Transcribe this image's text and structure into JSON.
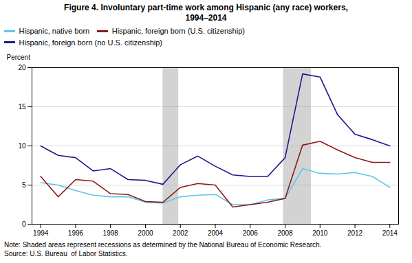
{
  "chart_data": {
    "type": "line",
    "title": "Figure 4. Involuntary part-time work among Hispanic (any race) workers,",
    "subtitle": "1994–2014",
    "y_label": "Percent",
    "annotations": [
      "Note: Shaded areas represent recessions as determined by the National Bureau of Economic Research.",
      "Source: U.S. Bureau  of Labor Statistics."
    ],
    "x": [
      1994,
      1995,
      1996,
      1997,
      1998,
      1999,
      2000,
      2001,
      2002,
      2003,
      2004,
      2005,
      2006,
      2007,
      2008,
      2009,
      2010,
      2011,
      2012,
      2013,
      2014
    ],
    "series": [
      {
        "name": "Hispanic, native born",
        "color": "#5bc8e8",
        "values": [
          5.3,
          5.0,
          4.3,
          3.7,
          3.5,
          3.5,
          2.8,
          2.7,
          3.5,
          3.7,
          3.8,
          2.5,
          2.5,
          3.1,
          3.3,
          7.1,
          6.5,
          6.4,
          6.6,
          6.1,
          4.7
        ]
      },
      {
        "name": "Hispanic, foreign born (U.S. citizenship)",
        "color": "#8b1a1a",
        "values": [
          6.1,
          3.5,
          5.7,
          5.5,
          3.9,
          3.8,
          2.9,
          2.8,
          4.7,
          5.2,
          5.0,
          2.2,
          2.5,
          2.8,
          3.3,
          10.1,
          10.6,
          9.5,
          8.5,
          7.9,
          7.9
        ]
      },
      {
        "name": "Hispanic, foreign born (no U.S. citizenship)",
        "color": "#1a1a8c",
        "values": [
          10.0,
          8.8,
          8.5,
          6.8,
          7.1,
          5.7,
          5.6,
          5.1,
          7.6,
          8.7,
          7.4,
          6.3,
          6.1,
          6.1,
          8.5,
          19.2,
          18.8,
          14.0,
          11.5,
          10.8,
          10.0
        ]
      }
    ],
    "shaded_bands": {
      "ranges": [
        [
          2001.0,
          2001.9
        ],
        [
          2007.9,
          2009.5
        ]
      ],
      "color": "#d3d3d3"
    },
    "xlim": [
      1993.5,
      2014.5
    ],
    "xticks": [
      1994,
      1996,
      1998,
      2000,
      2002,
      2004,
      2006,
      2008,
      2010,
      2012,
      2014
    ],
    "ylim": [
      0,
      20
    ],
    "yticks": [
      0,
      5,
      10,
      15,
      20
    ],
    "grid": true,
    "legend": "upper left"
  }
}
